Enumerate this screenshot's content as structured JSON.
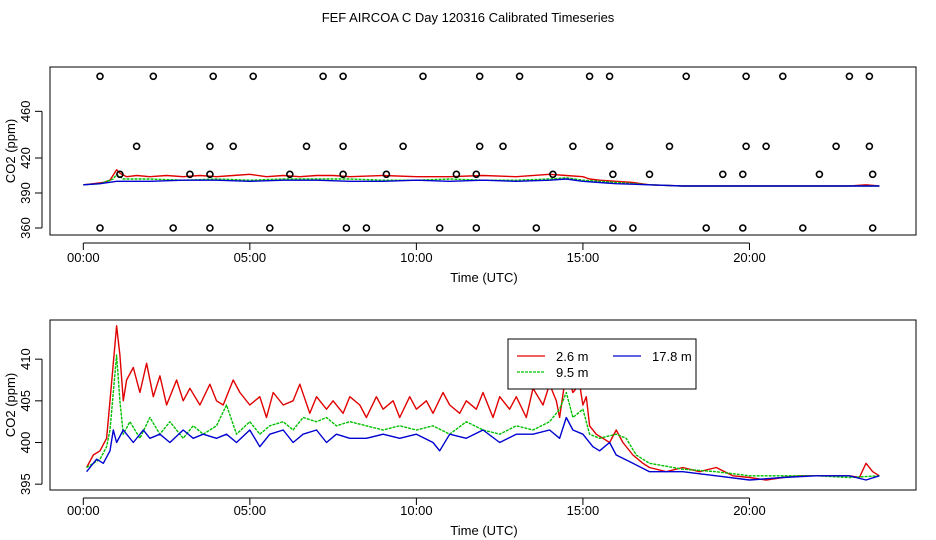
{
  "title": "FEF AIRCOA C  Day 120316  Calibrated Timeseries",
  "colors": {
    "red": "#e00000",
    "green": "#00c000",
    "blue": "#0000d0",
    "frame": "#000000"
  },
  "chart_data": [
    {
      "type": "scatter+line",
      "ylabel": "CO2 (ppm)",
      "xlabel": "Time (UTC)",
      "xlim": [
        -1.0,
        25.0
      ],
      "ylim": [
        354,
        498
      ],
      "xticks": [
        {
          "v": 0,
          "label": "00:00"
        },
        {
          "v": 5,
          "label": "05:00"
        },
        {
          "v": 10,
          "label": "10:00"
        },
        {
          "v": 15,
          "label": "15:00"
        },
        {
          "v": 20,
          "label": "20:00"
        }
      ],
      "yticks": [
        {
          "v": 360,
          "label": "360"
        },
        {
          "v": 390,
          "label": "390"
        },
        {
          "v": 420,
          "label": "420"
        },
        {
          "v": 460,
          "label": "460"
        }
      ],
      "calibration_points": {
        "x": [
          0.5,
          2.1,
          3.9,
          5.1,
          7.2,
          7.8,
          10.2,
          11.9,
          13.1,
          15.2,
          15.8,
          18.1,
          19.9,
          21.0,
          23.0,
          23.6,
          1.6,
          3.8,
          4.5,
          6.7,
          7.8,
          9.6,
          11.9,
          12.6,
          14.7,
          15.8,
          17.6,
          19.9,
          20.5,
          22.6,
          23.6,
          1.1,
          3.2,
          3.8,
          6.2,
          7.8,
          9.1,
          11.2,
          11.8,
          14.1,
          15.9,
          17.0,
          19.2,
          19.8,
          22.1,
          23.7,
          0.5,
          2.7,
          3.8,
          5.6,
          7.9,
          8.5,
          10.7,
          11.8,
          13.6,
          15.9,
          16.5,
          18.7,
          19.8,
          21.6,
          23.7
        ],
        "y": [
          490,
          490,
          490,
          490,
          490,
          490,
          490,
          490,
          490,
          490,
          490,
          490,
          490,
          490,
          490,
          490,
          430,
          430,
          430,
          430,
          430,
          430,
          430,
          430,
          430,
          430,
          430,
          430,
          430,
          430,
          430,
          406,
          406,
          406,
          406,
          406,
          406,
          406,
          406,
          406,
          406,
          406,
          406,
          406,
          406,
          406,
          360,
          360,
          360,
          360,
          360,
          360,
          360,
          360,
          360,
          360,
          360,
          360,
          360,
          360,
          360
        ]
      },
      "series": [
        {
          "name": "2.6 m",
          "color": "red",
          "x": [
            0,
            0.3,
            0.6,
            0.8,
            1.0,
            1.1,
            1.3,
            1.6,
            2.0,
            2.5,
            3.0,
            3.5,
            4.0,
            4.5,
            5.0,
            5.5,
            6.0,
            6.5,
            7.0,
            7.5,
            8.0,
            9.0,
            10.0,
            11.0,
            12.0,
            13.0,
            14.0,
            14.5,
            15.0,
            15.2,
            15.5,
            16.0,
            16.5,
            17.0,
            18.0,
            19.0,
            20.0,
            21.0,
            22.0,
            23.0,
            23.5,
            23.9
          ],
          "y": [
            397,
            398,
            399,
            401,
            410,
            407,
            404,
            405,
            404,
            405,
            404,
            405,
            404,
            405,
            406,
            404,
            405,
            404,
            405,
            405,
            404,
            405,
            404,
            404,
            405,
            404,
            406,
            405,
            404,
            402,
            401,
            400,
            399,
            397,
            396,
            396,
            396,
            396,
            396,
            396,
            397,
            396
          ]
        },
        {
          "name": "9.5 m",
          "color": "green",
          "x": [
            0,
            0.5,
            0.9,
            1.0,
            1.2,
            2,
            3,
            4,
            5,
            6,
            7,
            8,
            9,
            10,
            11,
            12,
            13,
            14,
            14.5,
            15,
            15.5,
            16,
            17,
            18,
            20,
            22,
            23.9
          ],
          "y": [
            397,
            398,
            402,
            406,
            402,
            402,
            401,
            402,
            401,
            402,
            402,
            402,
            401,
            401,
            402,
            401,
            401,
            402,
            403,
            401,
            400,
            399,
            397,
            396,
            396,
            396,
            396
          ]
        },
        {
          "name": "17.8 m",
          "color": "blue",
          "x": [
            0,
            0.5,
            1.0,
            2,
            3,
            4,
            5,
            6,
            7,
            8,
            9,
            10,
            11,
            12,
            13,
            14,
            14.5,
            15,
            15.5,
            16,
            17,
            18,
            20,
            22,
            23.9
          ],
          "y": [
            397,
            398,
            400,
            400,
            401,
            401,
            400,
            401,
            401,
            400,
            400,
            401,
            400,
            401,
            400,
            401,
            402,
            400,
            399,
            398,
            397,
            396,
            396,
            396,
            396
          ]
        }
      ]
    },
    {
      "type": "line",
      "ylabel": "CO2 (ppm)",
      "xlabel": "Time (UTC)",
      "xlim": [
        -1.0,
        25.0
      ],
      "ylim": [
        394.3,
        414.7
      ],
      "xticks": [
        {
          "v": 0,
          "label": "00:00"
        },
        {
          "v": 5,
          "label": "05:00"
        },
        {
          "v": 10,
          "label": "10:00"
        },
        {
          "v": 15,
          "label": "15:00"
        },
        {
          "v": 20,
          "label": "20:00"
        }
      ],
      "yticks": [
        {
          "v": 395,
          "label": "395"
        },
        {
          "v": 400,
          "label": "400"
        },
        {
          "v": 405,
          "label": "405"
        },
        {
          "v": 410,
          "label": "410"
        }
      ],
      "legend": {
        "position": "top-right",
        "entries": [
          {
            "label": "2.6 m",
            "color": "red"
          },
          {
            "label": "17.8 m",
            "color": "blue"
          },
          {
            "label": "9.5 m",
            "color": "green"
          }
        ]
      },
      "series": [
        {
          "name": "2.6 m",
          "color": "red",
          "x": [
            0.1,
            0.3,
            0.5,
            0.7,
            0.8,
            0.9,
            1.0,
            1.1,
            1.2,
            1.3,
            1.5,
            1.7,
            1.9,
            2.1,
            2.3,
            2.5,
            2.8,
            3.0,
            3.2,
            3.5,
            3.8,
            4.0,
            4.2,
            4.5,
            4.7,
            5.0,
            5.3,
            5.5,
            5.7,
            6.0,
            6.3,
            6.5,
            6.8,
            7.0,
            7.3,
            7.5,
            7.8,
            8.0,
            8.3,
            8.5,
            8.8,
            9.0,
            9.3,
            9.5,
            9.8,
            10.0,
            10.3,
            10.5,
            10.8,
            11.0,
            11.3,
            11.5,
            11.8,
            12.0,
            12.3,
            12.5,
            12.8,
            13.0,
            13.3,
            13.5,
            13.8,
            14.0,
            14.2,
            14.3,
            14.5,
            14.7,
            14.9,
            15.0,
            15.1,
            15.2,
            15.4,
            15.6,
            15.8,
            16.0,
            16.2,
            16.5,
            16.8,
            17.0,
            17.5,
            18.0,
            18.5,
            19.0,
            19.5,
            20.0,
            20.5,
            21.0,
            21.5,
            22.0,
            22.5,
            23.0,
            23.3,
            23.5,
            23.7,
            23.9
          ],
          "y": [
            397.0,
            398.5,
            399.0,
            400.5,
            405.0,
            409.5,
            414.0,
            410.5,
            405.0,
            407.5,
            409.0,
            406.0,
            409.5,
            405.5,
            408.0,
            404.5,
            407.5,
            405.0,
            406.5,
            404.5,
            407.0,
            405.0,
            404.5,
            407.5,
            406.0,
            404.5,
            405.5,
            403.0,
            406.0,
            404.5,
            405.0,
            407.0,
            403.5,
            405.5,
            404.0,
            405.0,
            403.5,
            405.5,
            404.5,
            403.0,
            405.5,
            404.0,
            405.0,
            403.0,
            405.5,
            404.0,
            405.0,
            403.5,
            406.0,
            404.5,
            403.5,
            405.0,
            404.0,
            406.0,
            403.0,
            405.5,
            404.0,
            405.5,
            403.0,
            406.5,
            404.5,
            407.0,
            405.0,
            403.0,
            408.5,
            406.0,
            407.0,
            404.5,
            405.5,
            402.0,
            401.0,
            400.5,
            400.0,
            401.5,
            400.0,
            398.5,
            397.5,
            397.0,
            396.5,
            397.0,
            396.5,
            397.0,
            396.0,
            395.8,
            395.5,
            395.8,
            396.0,
            396.0,
            396.0,
            396.0,
            395.8,
            397.5,
            396.5,
            396.0
          ]
        },
        {
          "name": "9.5 m",
          "color": "green",
          "x": [
            0.1,
            0.5,
            0.7,
            0.8,
            0.9,
            1.0,
            1.1,
            1.2,
            1.4,
            1.7,
            2.0,
            2.3,
            2.6,
            3.0,
            3.3,
            3.6,
            4.0,
            4.3,
            4.6,
            5.0,
            5.3,
            5.6,
            6.0,
            6.3,
            6.6,
            7.0,
            7.3,
            7.6,
            8.0,
            8.5,
            9.0,
            9.5,
            10.0,
            10.5,
            11.0,
            11.5,
            12.0,
            12.5,
            13.0,
            13.5,
            14.0,
            14.3,
            14.5,
            14.7,
            15.0,
            15.2,
            15.5,
            15.8,
            16.0,
            16.3,
            16.6,
            17.0,
            18.0,
            19.0,
            20.0,
            21.0,
            22.0,
            23.0,
            23.9
          ],
          "y": [
            397.0,
            398.0,
            399.5,
            401.5,
            406.0,
            410.5,
            405.0,
            401.0,
            402.5,
            400.5,
            403.0,
            401.0,
            402.5,
            400.5,
            402.0,
            401.0,
            402.0,
            404.5,
            401.0,
            402.5,
            401.0,
            402.0,
            402.5,
            401.5,
            403.0,
            402.5,
            403.0,
            402.0,
            402.5,
            402.0,
            401.5,
            402.0,
            401.5,
            402.0,
            401.0,
            402.5,
            401.5,
            401.0,
            402.0,
            401.5,
            402.5,
            404.0,
            406.0,
            403.0,
            404.0,
            401.0,
            400.5,
            400.8,
            401.0,
            400.5,
            398.5,
            397.5,
            396.8,
            396.5,
            396.0,
            396.0,
            396.0,
            395.8,
            396.0
          ]
        },
        {
          "name": "17.8 m",
          "color": "blue",
          "x": [
            0.1,
            0.4,
            0.6,
            0.8,
            0.9,
            1.0,
            1.2,
            1.5,
            1.8,
            2.0,
            2.3,
            2.6,
            3.0,
            3.3,
            3.6,
            4.0,
            4.3,
            4.6,
            5.0,
            5.3,
            5.6,
            6.0,
            6.3,
            6.6,
            7.0,
            7.3,
            7.6,
            8.0,
            8.5,
            9.0,
            9.5,
            10.0,
            10.5,
            10.7,
            11.0,
            11.5,
            12.0,
            12.5,
            13.0,
            13.5,
            14.0,
            14.3,
            14.5,
            14.7,
            15.0,
            15.3,
            15.5,
            15.8,
            16.0,
            16.5,
            17.0,
            18.0,
            19.0,
            20.0,
            21.0,
            22.0,
            23.0,
            23.5,
            23.9
          ],
          "y": [
            396.5,
            398.0,
            397.5,
            399.0,
            401.5,
            400.0,
            401.5,
            400.0,
            401.5,
            400.5,
            401.0,
            400.0,
            401.5,
            400.5,
            401.0,
            400.5,
            401.0,
            400.0,
            401.5,
            399.5,
            401.0,
            401.5,
            400.0,
            401.0,
            401.5,
            400.0,
            401.0,
            400.5,
            400.5,
            401.0,
            400.5,
            401.0,
            400.0,
            399.0,
            401.0,
            400.5,
            401.5,
            400.0,
            401.0,
            401.0,
            401.5,
            400.5,
            403.0,
            401.5,
            401.0,
            399.5,
            399.0,
            400.0,
            398.5,
            397.5,
            396.5,
            396.5,
            396.0,
            395.5,
            395.8,
            396.0,
            396.0,
            395.5,
            396.0
          ]
        }
      ]
    }
  ]
}
